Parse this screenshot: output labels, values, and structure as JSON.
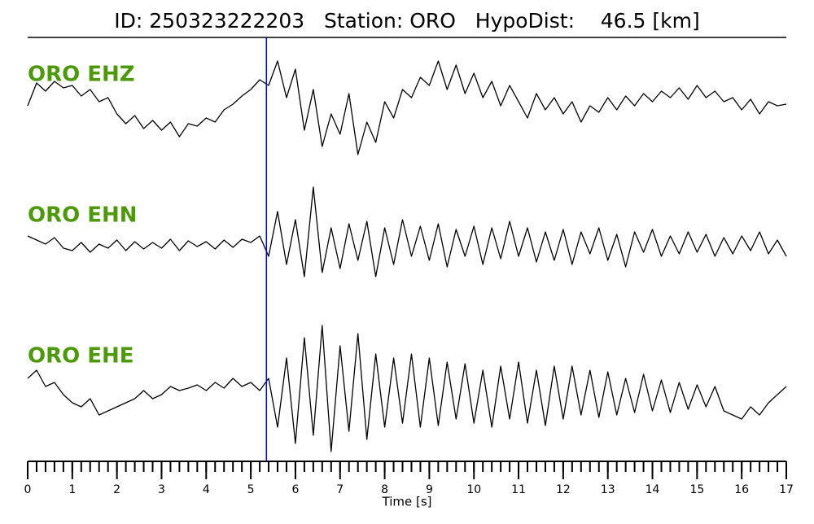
{
  "chart_data": {
    "type": "line",
    "title": "ID: 250323222203   Station: ORO   HypoDist:    46.5 [km]",
    "xlabel": "Time [s]",
    "xlim": [
      0,
      17
    ],
    "xticks": [
      0,
      1,
      2,
      3,
      4,
      5,
      6,
      7,
      8,
      9,
      10,
      11,
      12,
      13,
      14,
      15,
      16,
      17
    ],
    "xminor_step": 0.2,
    "ylim": [
      -80,
      80
    ],
    "pick_time": 5.35,
    "pick_color": "#0000ff",
    "label_color": "#4c9a0a",
    "x": [
      0,
      0.2,
      0.4,
      0.6,
      0.8,
      1,
      1.2,
      1.4,
      1.6,
      1.8,
      2,
      2.2,
      2.4,
      2.6,
      2.8,
      3,
      3.2,
      3.4,
      3.6,
      3.8,
      4,
      4.2,
      4.4,
      4.6,
      4.8,
      5,
      5.2,
      5.4,
      5.6,
      5.8,
      6,
      6.2,
      6.4,
      6.6,
      6.8,
      7,
      7.2,
      7.4,
      7.6,
      7.8,
      8,
      8.2,
      8.4,
      8.6,
      8.8,
      9,
      9.2,
      9.4,
      9.6,
      9.8,
      10,
      10.2,
      10.4,
      10.6,
      10.8,
      11,
      11.2,
      11.4,
      11.6,
      11.8,
      12,
      12.2,
      12.4,
      12.6,
      12.8,
      13,
      13.2,
      13.4,
      13.6,
      13.8,
      14,
      14.2,
      14.4,
      14.6,
      14.8,
      15,
      15.2,
      15.4,
      15.6,
      15.8,
      16,
      16.2,
      16.4,
      16.6,
      16.8,
      17
    ],
    "series": [
      {
        "name": "ORO EHZ",
        "color": "#000000",
        "values": [
          0,
          28,
          18,
          30,
          22,
          25,
          12,
          20,
          5,
          10,
          -10,
          -22,
          -12,
          -28,
          -18,
          -30,
          -20,
          -38,
          -22,
          -25,
          -15,
          -20,
          -5,
          2,
          12,
          20,
          32,
          25,
          55,
          10,
          45,
          -30,
          20,
          -50,
          -10,
          -35,
          15,
          -60,
          -20,
          -45,
          5,
          -15,
          20,
          10,
          35,
          25,
          55,
          20,
          50,
          15,
          40,
          10,
          30,
          0,
          25,
          5,
          -15,
          15,
          -5,
          10,
          -10,
          5,
          -20,
          0,
          -8,
          10,
          -5,
          12,
          0,
          15,
          5,
          18,
          10,
          22,
          8,
          25,
          10,
          18,
          5,
          10,
          -5,
          8,
          -10,
          5,
          0,
          2
        ]
      },
      {
        "name": "ORO EHN",
        "color": "#000000",
        "values": [
          10,
          5,
          0,
          8,
          -5,
          -8,
          2,
          -10,
          0,
          -5,
          5,
          -8,
          3,
          -6,
          2,
          -5,
          6,
          -8,
          4,
          -3,
          3,
          -6,
          5,
          -4,
          6,
          2,
          10,
          -15,
          40,
          -25,
          30,
          -40,
          70,
          -35,
          20,
          -30,
          25,
          -20,
          28,
          -40,
          20,
          -25,
          30,
          -15,
          22,
          -20,
          25,
          -28,
          18,
          -15,
          22,
          -25,
          20,
          -18,
          28,
          -15,
          20,
          -22,
          15,
          -20,
          18,
          -25,
          15,
          -12,
          20,
          -20,
          12,
          -28,
          15,
          -10,
          18,
          -15,
          10,
          -12,
          15,
          -10,
          12,
          -15,
          8,
          -12,
          10,
          -8,
          15,
          -12,
          5,
          -15
        ]
      },
      {
        "name": "ORO EHE",
        "color": "#000000",
        "values": [
          20,
          30,
          10,
          15,
          0,
          -10,
          -15,
          -5,
          -25,
          -20,
          -15,
          -10,
          -5,
          5,
          -5,
          0,
          10,
          5,
          8,
          12,
          5,
          15,
          8,
          20,
          10,
          15,
          5,
          20,
          -40,
          45,
          -60,
          70,
          -50,
          85,
          -70,
          60,
          -45,
          75,
          -55,
          50,
          -40,
          45,
          -35,
          50,
          -40,
          45,
          -38,
          40,
          -30,
          38,
          -35,
          30,
          -40,
          35,
          -30,
          40,
          -35,
          30,
          -38,
          35,
          -30,
          35,
          -25,
          30,
          -28,
          28,
          -25,
          20,
          -22,
          25,
          -20,
          18,
          -22,
          15,
          -18,
          12,
          -15,
          10,
          -20,
          -25,
          -30,
          -15,
          -25,
          -10,
          0,
          10
        ]
      }
    ]
  }
}
